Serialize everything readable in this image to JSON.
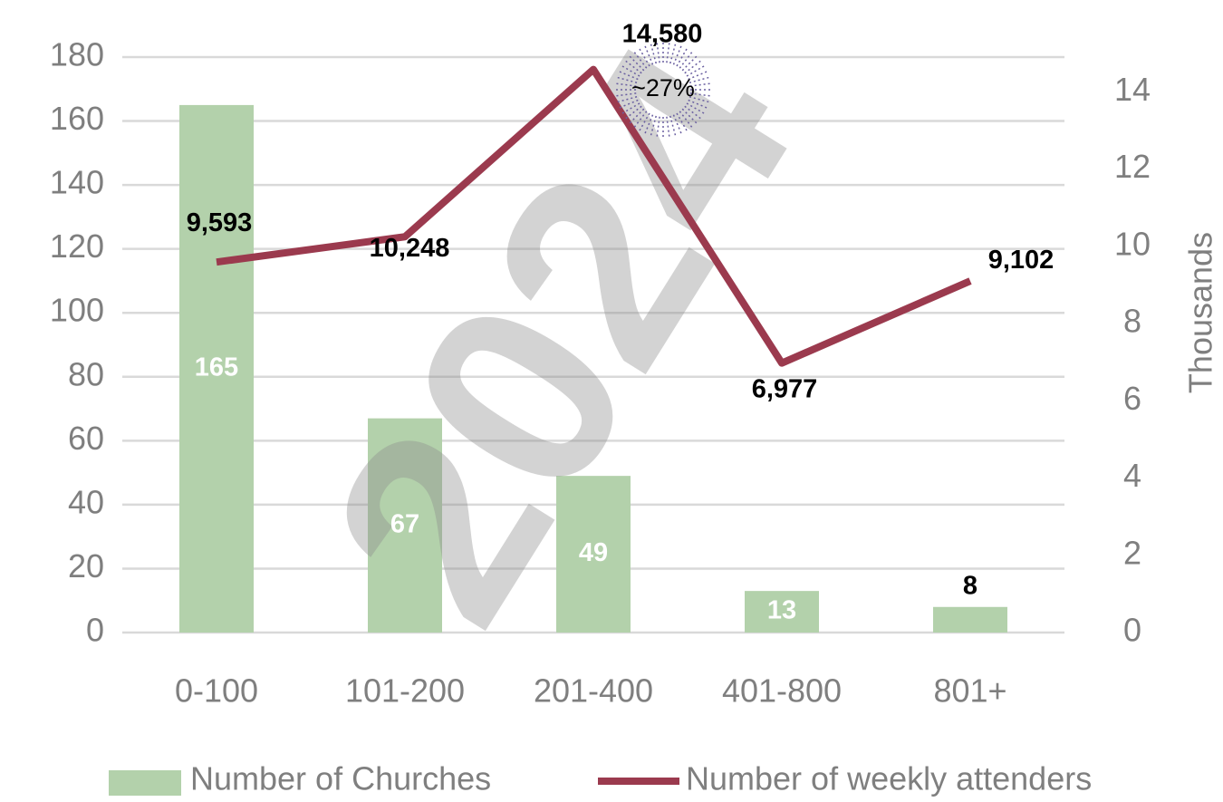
{
  "chart_data": {
    "type": "bar-line",
    "categories": [
      "0-100",
      "101-200",
      "201-400",
      "401-800",
      "801+"
    ],
    "series": [
      {
        "name": "Number of Churches",
        "type": "bar",
        "color": "#b3d1ab",
        "values": [
          165,
          67,
          49,
          13,
          8
        ]
      },
      {
        "name": "Number of weekly attenders",
        "type": "line",
        "axis": "y2",
        "color": "#9b3a4e",
        "values": [
          9.593,
          10.248,
          14.58,
          6.977,
          9.102
        ],
        "value_labels": [
          "9,593",
          "10,248",
          "14,580",
          "6,977",
          "9,102"
        ]
      }
    ],
    "ylim": [
      0,
      180
    ],
    "yticks": [
      0,
      20,
      40,
      60,
      80,
      100,
      120,
      140,
      160,
      180
    ],
    "y2lim": [
      0,
      14.9
    ],
    "y2ticks": [
      0,
      2,
      4,
      6,
      8,
      10,
      12,
      14
    ],
    "y2_label": "Thousands",
    "grid": true,
    "legend": "bottom",
    "annotations": [
      "2024",
      "~27%"
    ]
  }
}
